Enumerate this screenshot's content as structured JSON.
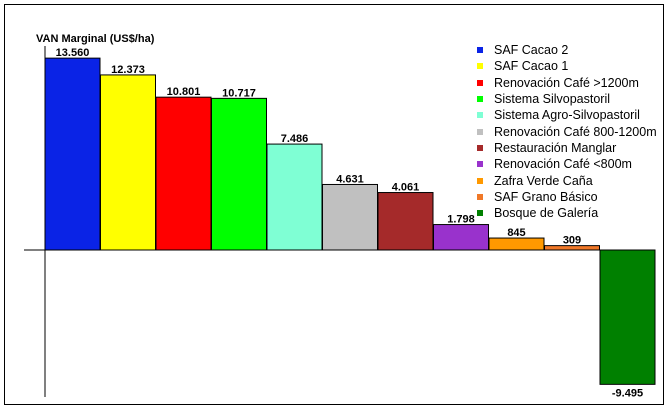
{
  "chart_data": {
    "type": "bar",
    "ylabel": "VAN Marginal (US$/ha)",
    "categories": [
      "SAF Cacao 2",
      "SAF Cacao 1",
      "Renovación Café >1200m",
      "Sistema Silvopastoril",
      "Sistema Agro-Silvopastoril",
      "Renovación Café 800-1200m",
      "Restauración Manglar",
      "Renovación Café <800m",
      "Zafra Verde Caña",
      "SAF Grano Básico",
      "Bosque de Galería"
    ],
    "values": [
      13560,
      12373,
      10801,
      10717,
      7486,
      4631,
      4061,
      1798,
      845,
      309,
      -9495
    ],
    "value_labels": [
      "13.560",
      "12.373",
      "10.801",
      "10.717",
      "7.486",
      "4.631",
      "4.061",
      "1.798",
      "845",
      "309",
      "-9.495"
    ],
    "colors": [
      "#0a23e6",
      "#ffff00",
      "#ff0000",
      "#00ff00",
      "#7fffd4",
      "#c0c0c0",
      "#a52a2a",
      "#9932cc",
      "#ff9900",
      "#f07828",
      "#008000"
    ],
    "grid": false,
    "legend_position": "top-right"
  }
}
